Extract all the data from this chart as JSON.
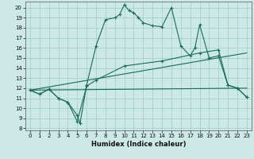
{
  "xlabel": "Humidex (Indice chaleur)",
  "xlim": [
    -0.5,
    23.5
  ],
  "ylim": [
    7.8,
    20.6
  ],
  "xticks": [
    0,
    1,
    2,
    3,
    4,
    5,
    6,
    7,
    8,
    9,
    10,
    11,
    12,
    13,
    14,
    15,
    16,
    17,
    18,
    19,
    20,
    21,
    22,
    23
  ],
  "yticks": [
    8,
    9,
    10,
    11,
    12,
    13,
    14,
    15,
    16,
    17,
    18,
    19,
    20
  ],
  "bg_color": "#cce9e5",
  "line_color": "#1a6b5a",
  "grid_color": "#9eccc7",
  "curve_main": [
    [
      0,
      11.8
    ],
    [
      1,
      11.4
    ],
    [
      2,
      11.9
    ],
    [
      3,
      11.0
    ],
    [
      4,
      10.6
    ],
    [
      5,
      9.3
    ],
    [
      5.3,
      8.5
    ],
    [
      6,
      12.3
    ],
    [
      7,
      16.2
    ],
    [
      8,
      18.8
    ],
    [
      9,
      19.0
    ],
    [
      9.5,
      19.3
    ],
    [
      10,
      20.3
    ],
    [
      10.5,
      19.7
    ],
    [
      11,
      19.5
    ],
    [
      11.5,
      19.0
    ],
    [
      12,
      18.5
    ],
    [
      13,
      18.2
    ],
    [
      14,
      18.1
    ],
    [
      15,
      20.0
    ],
    [
      16,
      16.2
    ],
    [
      17,
      15.2
    ],
    [
      17.5,
      16.0
    ],
    [
      18,
      18.3
    ],
    [
      19,
      15.0
    ],
    [
      20,
      15.2
    ],
    [
      21,
      12.3
    ],
    [
      22,
      12.0
    ],
    [
      23,
      11.1
    ]
  ],
  "curve2": [
    [
      0,
      11.8
    ],
    [
      1,
      11.4
    ],
    [
      2,
      11.9
    ],
    [
      3,
      11.0
    ],
    [
      4,
      10.6
    ],
    [
      5,
      8.7
    ],
    [
      6,
      12.2
    ],
    [
      7,
      12.8
    ],
    [
      10,
      14.2
    ],
    [
      14,
      14.7
    ],
    [
      18,
      15.5
    ],
    [
      20,
      15.8
    ],
    [
      21,
      12.3
    ],
    [
      22,
      12.0
    ],
    [
      23,
      11.1
    ]
  ],
  "curve3": [
    [
      0,
      11.8
    ],
    [
      23,
      15.5
    ]
  ],
  "curve4": [
    [
      0,
      11.8
    ],
    [
      23,
      12.0
    ]
  ]
}
